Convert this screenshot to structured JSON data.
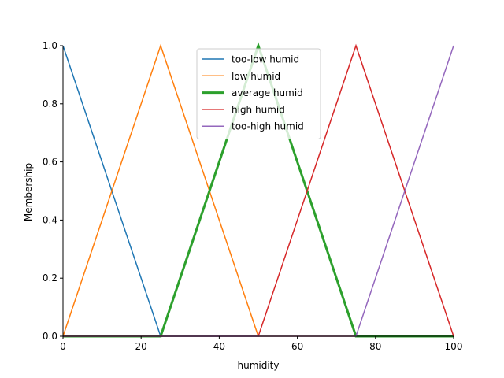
{
  "chart_data": {
    "type": "line",
    "title": "",
    "xlabel": "humidity",
    "ylabel": "Membership",
    "xlim": [
      0,
      100
    ],
    "ylim": [
      0,
      1.0
    ],
    "xticks": [
      0,
      20,
      40,
      60,
      80,
      100
    ],
    "yticks": [
      0.0,
      0.2,
      0.4,
      0.6,
      0.8,
      1.0
    ],
    "xtick_labels": [
      "0",
      "20",
      "40",
      "60",
      "80",
      "100"
    ],
    "ytick_labels": [
      "0.0",
      "0.2",
      "0.4",
      "0.6",
      "0.8",
      "1.0"
    ],
    "grid": false,
    "legend_position": "top-center",
    "series": [
      {
        "name": "too-low humid",
        "color": "#1f77b4",
        "emphasis": false,
        "x": [
          0,
          25,
          100
        ],
        "y": [
          1.0,
          0.0,
          0.0
        ]
      },
      {
        "name": "low humid",
        "color": "#ff7f0e",
        "emphasis": false,
        "x": [
          0,
          25,
          50,
          100
        ],
        "y": [
          0.0,
          1.0,
          0.0,
          0.0
        ]
      },
      {
        "name": "average humid",
        "color": "#2ca02c",
        "emphasis": true,
        "x": [
          0,
          25,
          50,
          75,
          100
        ],
        "y": [
          0.0,
          0.0,
          1.0,
          0.0,
          0.0
        ]
      },
      {
        "name": "high humid",
        "color": "#d62728",
        "emphasis": false,
        "x": [
          0,
          50,
          75,
          100
        ],
        "y": [
          0.0,
          0.0,
          1.0,
          0.0
        ]
      },
      {
        "name": "too-high humid",
        "color": "#9467bd",
        "emphasis": false,
        "x": [
          0,
          75,
          100
        ],
        "y": [
          0.0,
          0.0,
          1.0
        ]
      }
    ]
  }
}
